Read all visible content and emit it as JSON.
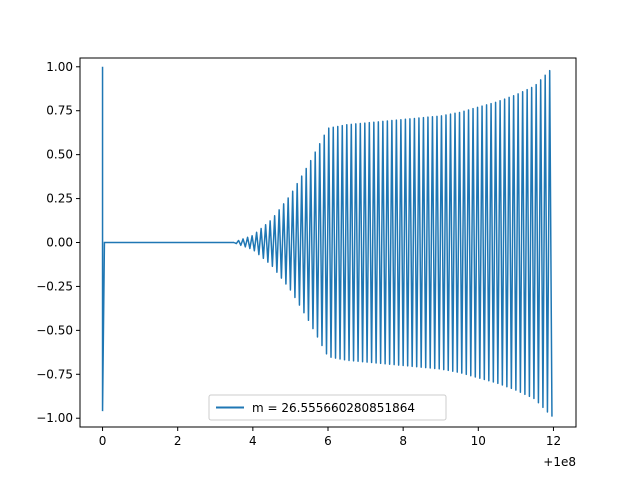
{
  "chart_data": {
    "type": "line",
    "title": "",
    "xlabel": "",
    "ylabel": "",
    "x_offset_label": "+1e8",
    "xlim": [
      -0.6,
      12.6
    ],
    "ylim": [
      -1.05,
      1.05
    ],
    "x_ticks": [
      0,
      2,
      4,
      6,
      8,
      10,
      12
    ],
    "x_tick_labels": [
      "0",
      "2",
      "4",
      "6",
      "8",
      "10",
      "12"
    ],
    "y_ticks": [
      -1.0,
      -0.75,
      -0.5,
      -0.25,
      0.0,
      0.25,
      0.5,
      0.75,
      1.0
    ],
    "y_tick_labels": [
      "−1.00",
      "−0.75",
      "−0.50",
      "−0.25",
      "0.00",
      "0.25",
      "0.50",
      "0.75",
      "1.00"
    ],
    "grid": false,
    "legend_position": "lower center",
    "series": [
      {
        "name": "m = 26.555660280851864",
        "color": "#1f77b4",
        "envelope_x": [
          0,
          0.05,
          0.1,
          3.5,
          3.6,
          4,
          4.5,
          5,
          5.5,
          6,
          6.5,
          7,
          7.5,
          8,
          8.5,
          9,
          9.5,
          10,
          10.5,
          11,
          11.5,
          12
        ],
        "envelope_y": [
          1.0,
          0.0,
          0.0,
          0.0,
          0.01,
          0.04,
          0.13,
          0.27,
          0.45,
          0.65,
          0.67,
          0.68,
          0.69,
          0.7,
          0.71,
          0.72,
          0.74,
          0.77,
          0.8,
          0.84,
          0.89,
          1.0
        ],
        "envelope_y_negative_start": -0.96
      }
    ]
  }
}
